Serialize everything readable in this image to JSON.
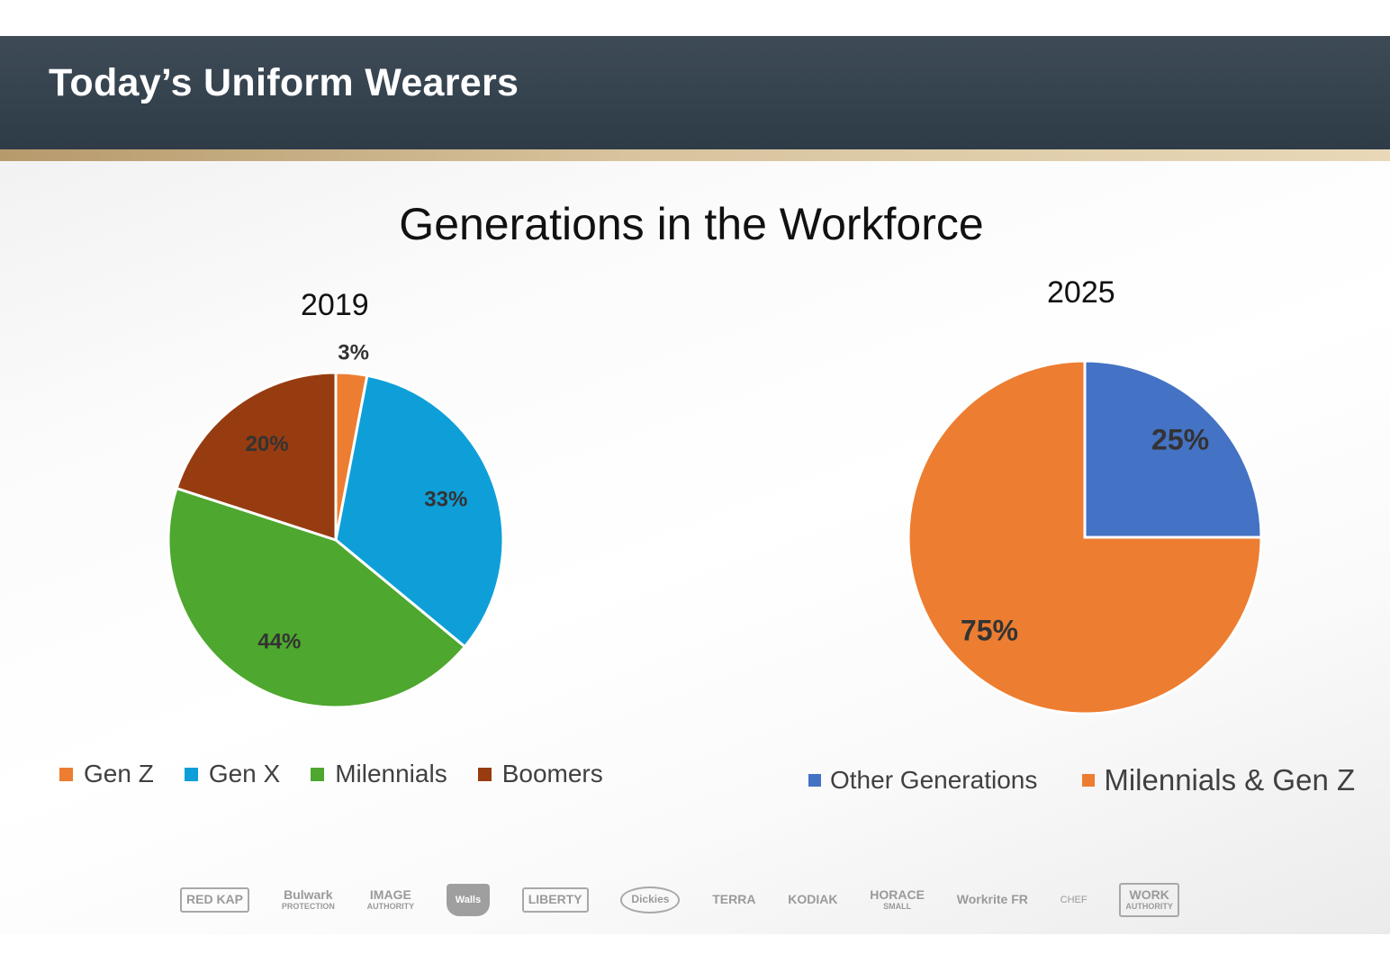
{
  "header": {
    "title": "Today’s Uniform Wearers"
  },
  "main": {
    "title": "Generations in the Workforce"
  },
  "chart_data": [
    {
      "type": "pie",
      "title": "2019",
      "categories": [
        "Gen Z",
        "Gen X",
        "Milennials",
        "Boomers"
      ],
      "values": [
        3,
        33,
        44,
        20
      ],
      "labels": [
        "3%",
        "33%",
        "44%",
        "20%"
      ],
      "colors": [
        "#ed7d31",
        "#0e9fd8",
        "#4ea72e",
        "#973b10"
      ],
      "legend": "bottom"
    },
    {
      "type": "pie",
      "title": "2025",
      "categories": [
        "Other Generations",
        "Milennials & Gen Z"
      ],
      "values": [
        25,
        75
      ],
      "labels": [
        "25%",
        "75%"
      ],
      "colors": [
        "#4472c4",
        "#ed7d31"
      ],
      "legend": "bottom"
    }
  ],
  "logos": [
    {
      "name": "red-kap-logo",
      "lines": [
        "RED KAP"
      ]
    },
    {
      "name": "bulwark-logo",
      "lines": [
        "Bulwark",
        "PROTECTION"
      ]
    },
    {
      "name": "image-authority-logo",
      "lines": [
        "IMAGE",
        "AUTHORITY"
      ]
    },
    {
      "name": "walls-logo",
      "lines": [
        "Walls"
      ]
    },
    {
      "name": "liberty-logo",
      "lines": [
        "LIBERTY"
      ]
    },
    {
      "name": "dickies-logo",
      "lines": [
        "Dickies"
      ]
    },
    {
      "name": "terra-logo",
      "lines": [
        "TERRA"
      ]
    },
    {
      "name": "kodiak-logo",
      "lines": [
        "KODIAK"
      ]
    },
    {
      "name": "horace-small-logo",
      "lines": [
        "HORACE",
        "SMALL"
      ]
    },
    {
      "name": "workrite-logo",
      "lines": [
        "Workrite FR"
      ]
    },
    {
      "name": "chef-designs-logo",
      "lines": [
        "CHEF"
      ]
    },
    {
      "name": "work-authority-logo",
      "lines": [
        "WORK",
        "AUTHORITY"
      ]
    }
  ]
}
